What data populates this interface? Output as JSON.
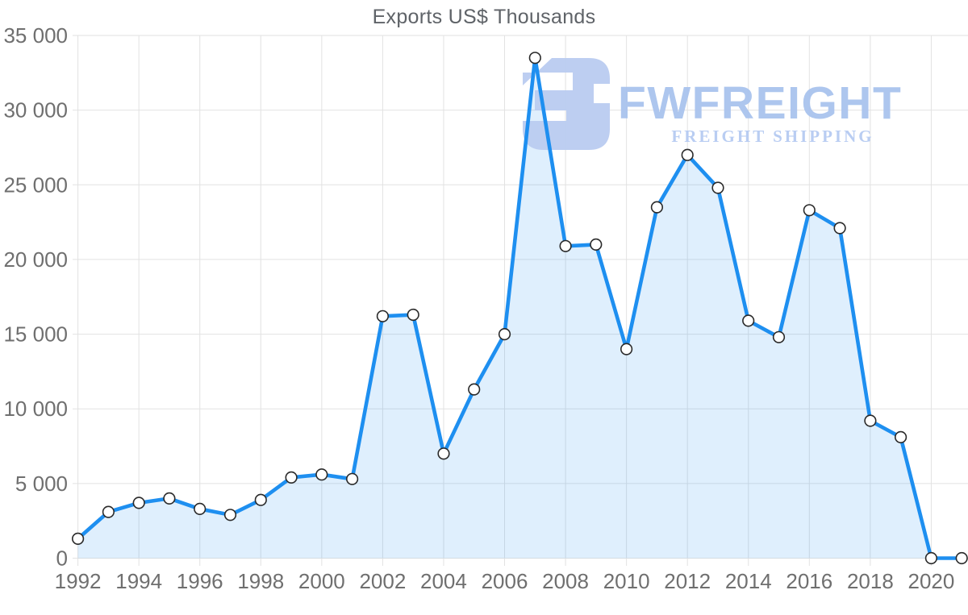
{
  "watermark": {
    "brand": "FWFREIGHT",
    "tagline": "FREIGHT SHIPPING",
    "icon": "fwfreight-logo-icon",
    "brand_color": "#A9C3EE",
    "tagline_color": "#B6CBF2",
    "icon_color": "#B9CBF0"
  },
  "chart_data": {
    "type": "area",
    "title": "Exports US$ Thousands",
    "x": [
      1992,
      1993,
      1994,
      1995,
      1996,
      1997,
      1998,
      1999,
      2000,
      2001,
      2002,
      2003,
      2004,
      2005,
      2006,
      2007,
      2008,
      2009,
      2010,
      2011,
      2012,
      2013,
      2014,
      2015,
      2016,
      2017,
      2018,
      2019,
      2020,
      2021
    ],
    "series": [
      {
        "name": "Exports US$ Thousands",
        "values": [
          1300,
          3100,
          3700,
          4000,
          3300,
          2900,
          3900,
          5400,
          5600,
          5300,
          16200,
          16300,
          7000,
          11300,
          15000,
          33500,
          20900,
          21000,
          14000,
          23500,
          27000,
          24800,
          15900,
          14800,
          23300,
          22100,
          9200,
          8100,
          0,
          0
        ]
      }
    ],
    "ylim": [
      0,
      35000
    ],
    "ytick_step": 5000,
    "ytick_labels": [
      "0",
      "5 000",
      "10 000",
      "15 000",
      "20 000",
      "25 000",
      "30 000",
      "35 000"
    ],
    "xtick_labels": [
      "1992",
      "1994",
      "1996",
      "1998",
      "2000",
      "2002",
      "2004",
      "2006",
      "2008",
      "2010",
      "2012",
      "2014",
      "2016",
      "2018",
      "2020"
    ],
    "grid": true,
    "legend": "none",
    "marker": "circle",
    "colors": {
      "line": "#1E8FF0",
      "area_fill": "rgba(30,143,240,0.14)",
      "marker_fill": "#FFFFFF",
      "marker_stroke": "#2A2A2A",
      "grid": "#E2E2E2",
      "tick_text": "#6F6F6F",
      "title_text": "#5F6368"
    }
  }
}
